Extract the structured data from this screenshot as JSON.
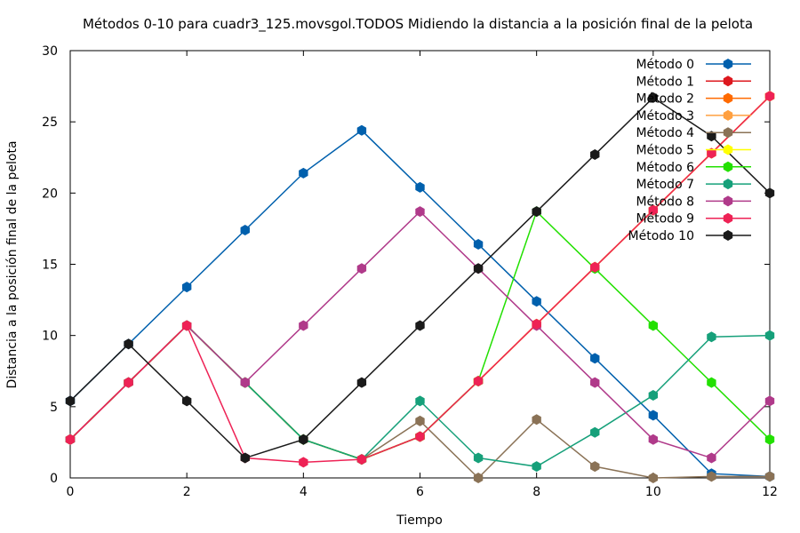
{
  "chart_data": {
    "type": "line",
    "title": "Métodos 0-10 para cuadr3_125.movsgol.TODOS Midiendo la distancia a la posición final de la pelota",
    "xlabel": "Tiempo",
    "ylabel": "Distancia a la posición final de la pelota",
    "xlim": [
      0,
      12
    ],
    "ylim": [
      0,
      30
    ],
    "xticks": [
      0,
      2,
      4,
      6,
      8,
      10,
      12
    ],
    "yticks": [
      0,
      5,
      10,
      15,
      20,
      25,
      30
    ],
    "grid": false,
    "legend_position": "top-right",
    "x": [
      0,
      1,
      2,
      3,
      4,
      5,
      6,
      7,
      8,
      9,
      10,
      11,
      12
    ],
    "series": [
      {
        "name": "Método 0",
        "color": "#0060ad",
        "values": [
          5.4,
          9.4,
          13.4,
          17.4,
          21.4,
          24.4,
          20.4,
          16.4,
          12.4,
          8.4,
          4.4,
          0.3,
          0.1
        ]
      },
      {
        "name": "Método 1",
        "color": "#dd181f",
        "values": [
          2.7,
          6.7,
          10.7,
          6.7,
          2.7,
          1.3,
          2.9,
          6.8,
          10.8,
          14.8,
          18.8,
          22.8,
          26.8
        ]
      },
      {
        "name": "Método 2",
        "color": "#ff6a00",
        "values": [
          2.7,
          6.7,
          10.7,
          6.7,
          2.7,
          1.3,
          2.9,
          6.8,
          10.8,
          14.8,
          18.8,
          22.8,
          26.8
        ]
      },
      {
        "name": "Método 3",
        "color": "#ffa040",
        "values": [
          2.7,
          6.7,
          10.7,
          6.7,
          2.7,
          1.3,
          2.9,
          6.8,
          10.8,
          14.8,
          18.8,
          22.8,
          26.8
        ]
      },
      {
        "name": "Método 4",
        "color": "#8a7256",
        "values": [
          2.7,
          6.7,
          10.7,
          6.7,
          2.7,
          1.3,
          4.0,
          0.0,
          4.1,
          0.8,
          0.0,
          0.1,
          0.1
        ]
      },
      {
        "name": "Método 5",
        "color": "#ffff00",
        "values": [
          2.7,
          6.7,
          10.7,
          6.7,
          2.7,
          1.3,
          2.9,
          6.8,
          10.8,
          14.8,
          18.8,
          22.8,
          26.8
        ]
      },
      {
        "name": "Método 6",
        "color": "#22e000",
        "values": [
          2.7,
          6.7,
          10.7,
          6.7,
          2.7,
          1.3,
          2.9,
          6.8,
          18.7,
          14.7,
          10.7,
          6.7,
          2.7
        ]
      },
      {
        "name": "Método 7",
        "color": "#16a07a",
        "values": [
          2.7,
          6.7,
          10.7,
          6.7,
          2.7,
          1.3,
          5.4,
          1.4,
          0.8,
          3.2,
          5.8,
          9.9,
          10.0
        ]
      },
      {
        "name": "Método 8",
        "color": "#b03a8a",
        "values": [
          2.7,
          6.7,
          10.7,
          6.7,
          10.7,
          14.7,
          18.7,
          14.7,
          10.7,
          6.7,
          2.7,
          1.4,
          5.4
        ]
      },
      {
        "name": "Método 9",
        "color": "#ee2255",
        "values": [
          2.7,
          6.7,
          10.7,
          1.4,
          1.1,
          1.3,
          2.9,
          6.8,
          10.8,
          14.8,
          18.8,
          22.8,
          26.8
        ]
      },
      {
        "name": "Método 10",
        "color": "#1a1a1a",
        "values": [
          5.4,
          9.4,
          5.4,
          1.4,
          2.7,
          6.7,
          10.7,
          14.7,
          18.7,
          22.7,
          26.7,
          24.0,
          20.0
        ]
      }
    ]
  }
}
